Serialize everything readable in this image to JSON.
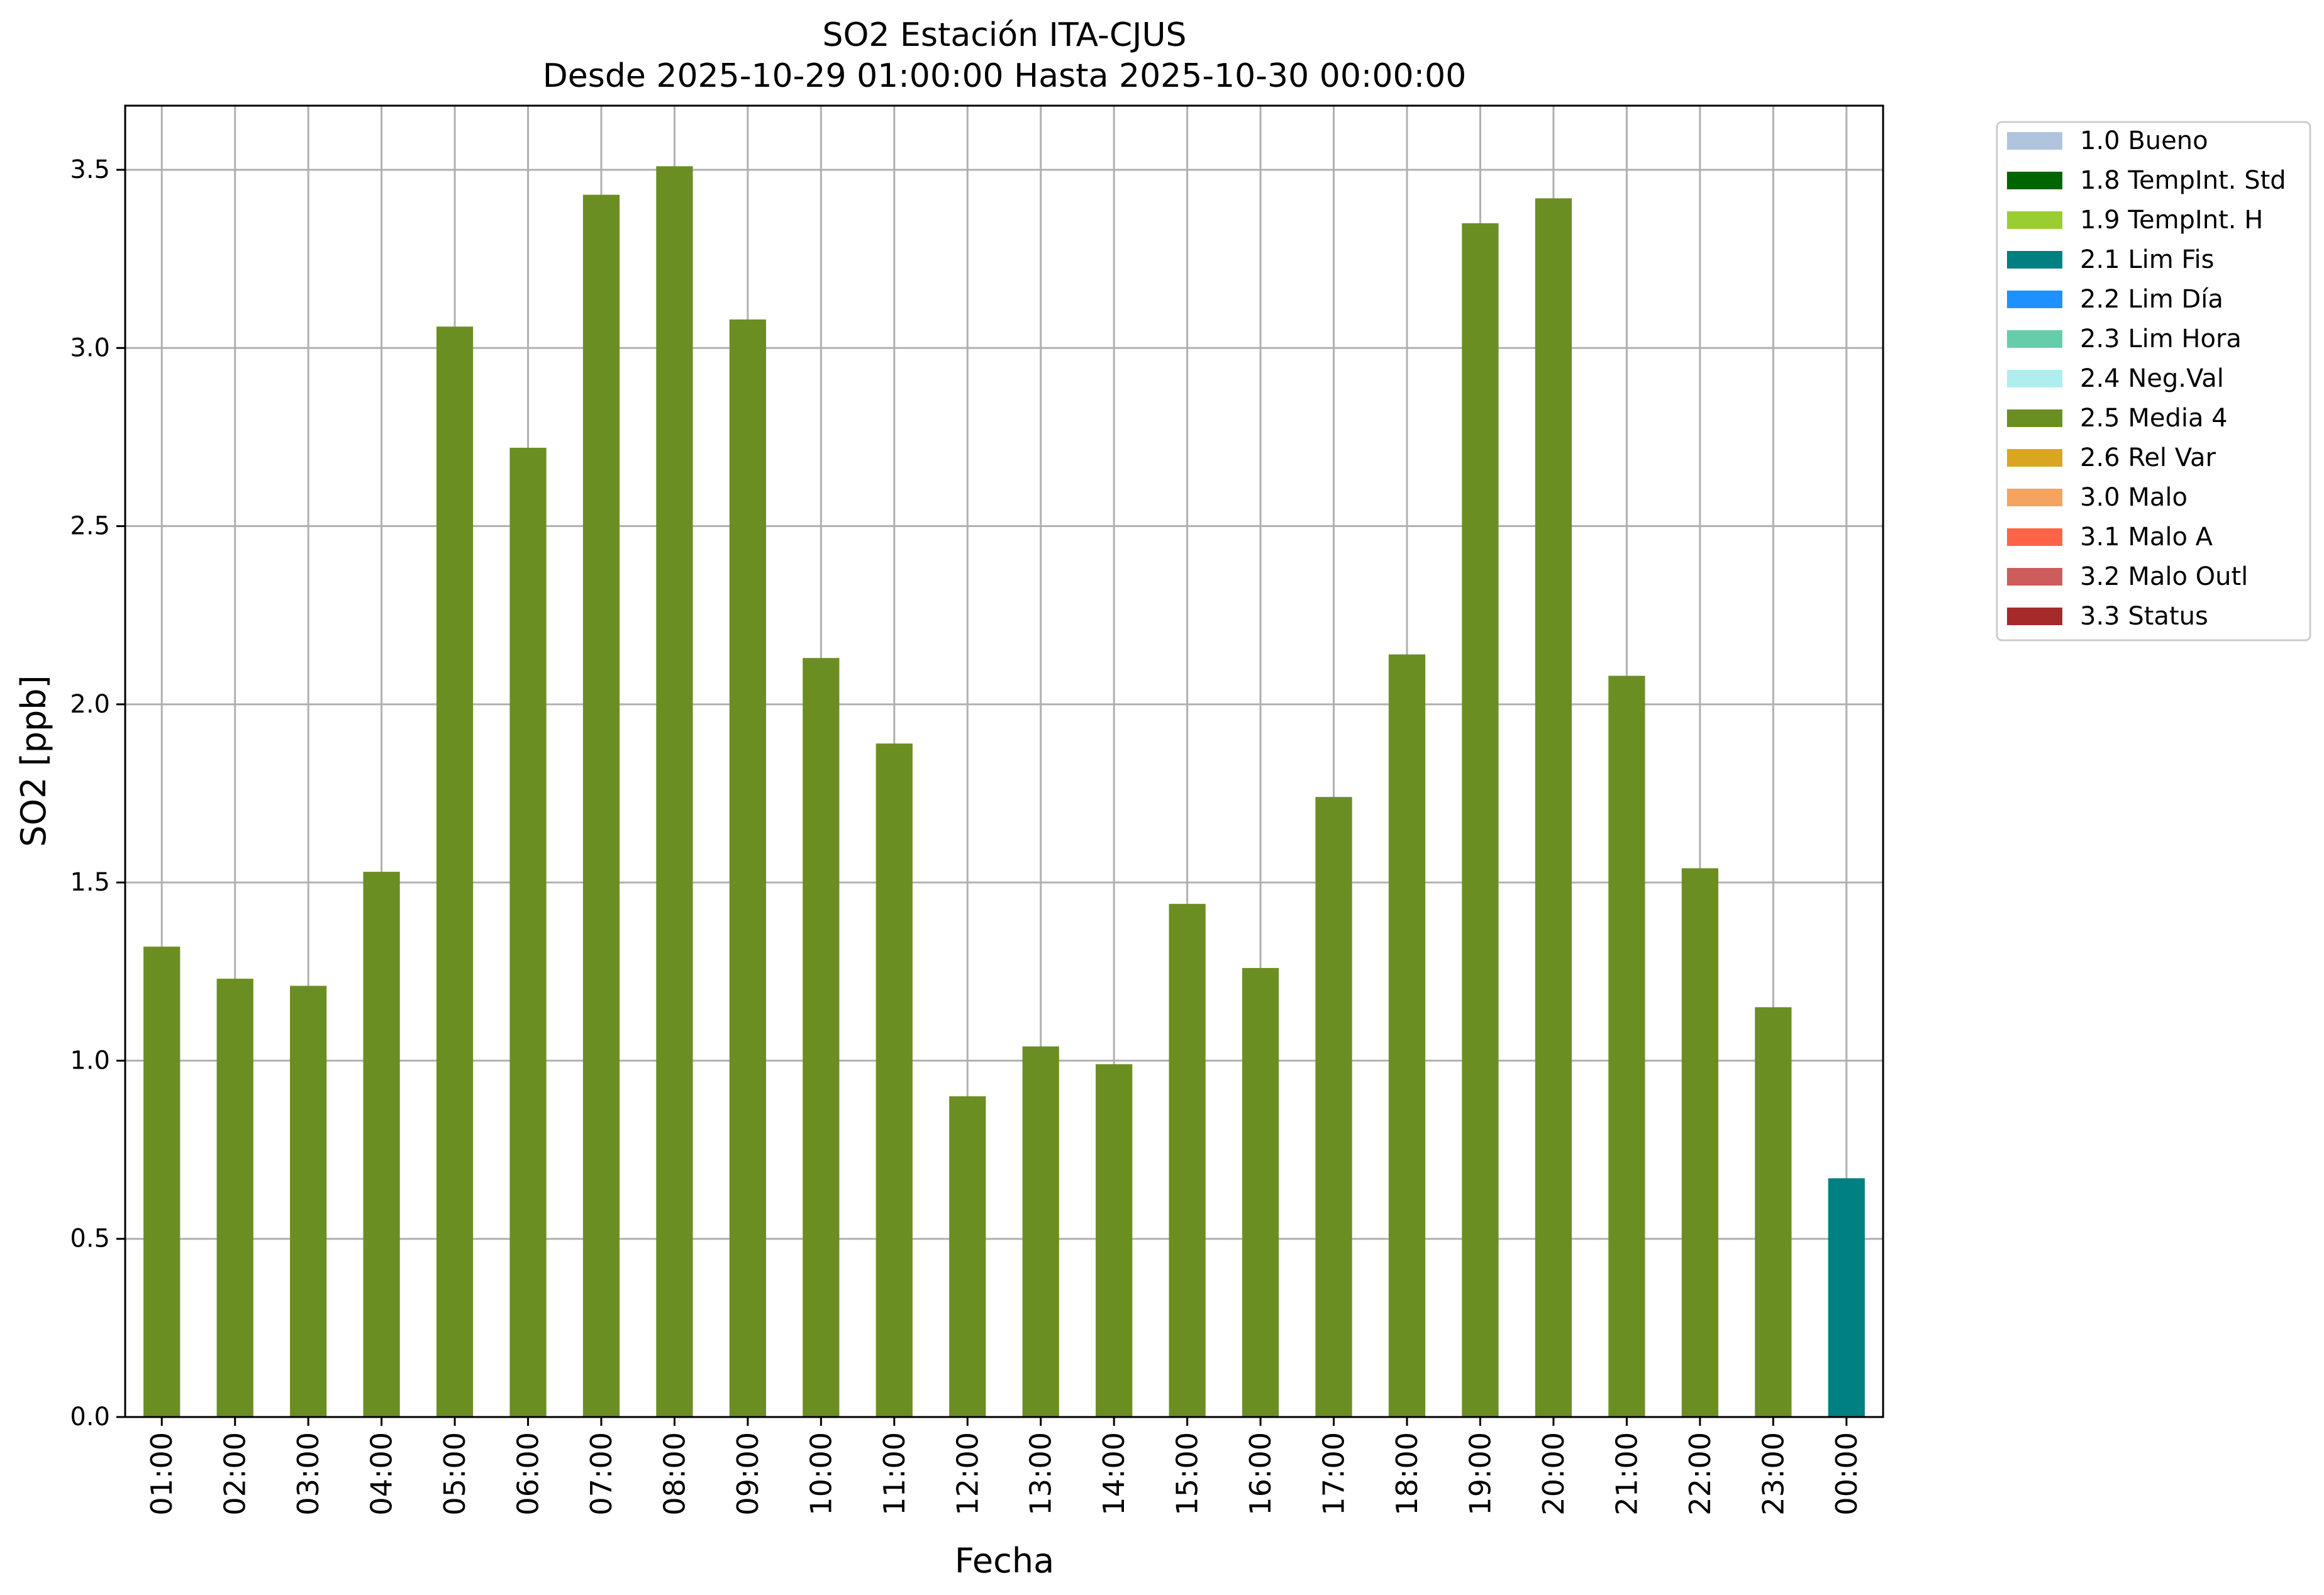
{
  "chart_data": {
    "type": "bar",
    "title": "SO2 Estación ITA-CJUS",
    "subtitle": "Desde 2025-10-29 01:00:00 Hasta 2025-10-30 00:00:00",
    "xlabel": "Fecha",
    "ylabel": "SO2 [ppb]",
    "ylim": [
      0,
      3.68
    ],
    "yticks": [
      "0.0",
      "0.5",
      "1.0",
      "1.5",
      "2.0",
      "2.5",
      "3.0",
      "3.5"
    ],
    "grid": true,
    "legend_position": "outside-top-right",
    "categories": [
      "01:00",
      "02:00",
      "03:00",
      "04:00",
      "05:00",
      "06:00",
      "07:00",
      "08:00",
      "09:00",
      "10:00",
      "11:00",
      "12:00",
      "13:00",
      "14:00",
      "15:00",
      "16:00",
      "17:00",
      "18:00",
      "19:00",
      "20:00",
      "21:00",
      "22:00",
      "23:00",
      "00:00"
    ],
    "values": [
      1.32,
      1.23,
      1.21,
      1.53,
      3.06,
      2.72,
      3.43,
      3.51,
      3.08,
      2.13,
      1.89,
      0.9,
      1.04,
      0.99,
      1.44,
      1.26,
      1.74,
      2.14,
      3.35,
      3.42,
      2.08,
      1.54,
      1.15,
      0.67
    ],
    "value_flags": [
      "2.5 Media 4",
      "2.5 Media 4",
      "2.5 Media 4",
      "2.5 Media 4",
      "2.5 Media 4",
      "2.5 Media 4",
      "2.5 Media 4",
      "2.5 Media 4",
      "2.5 Media 4",
      "2.5 Media 4",
      "2.5 Media 4",
      "2.5 Media 4",
      "2.5 Media 4",
      "2.5 Media 4",
      "2.5 Media 4",
      "2.5 Media 4",
      "2.5 Media 4",
      "2.5 Media 4",
      "2.5 Media 4",
      "2.5 Media 4",
      "2.5 Media 4",
      "2.5 Media 4",
      "2.5 Media 4",
      "2.1 Lim Fis"
    ],
    "legend": [
      {
        "label": "1.0 Bueno",
        "color": "#b0c4de"
      },
      {
        "label": "1.8 TempInt. Std",
        "color": "#006400"
      },
      {
        "label": "1.9 TempInt. H",
        "color": "#9acd32"
      },
      {
        "label": "2.1 Lim Fis",
        "color": "#008080"
      },
      {
        "label": "2.2 Lim Día",
        "color": "#1e90ff"
      },
      {
        "label": "2.3 Lim Hora",
        "color": "#66cdaa"
      },
      {
        "label": "2.4 Neg.Val",
        "color": "#afeeee"
      },
      {
        "label": "2.5 Media 4",
        "color": "#6b8e23"
      },
      {
        "label": "2.6 Rel Var",
        "color": "#daa520"
      },
      {
        "label": "3.0 Malo",
        "color": "#f4a460"
      },
      {
        "label": "3.1 Malo A",
        "color": "#ff6347"
      },
      {
        "label": "3.2 Malo Outl",
        "color": "#cd5c5c"
      },
      {
        "label": "3.3 Status",
        "color": "#a52a2a"
      }
    ]
  }
}
